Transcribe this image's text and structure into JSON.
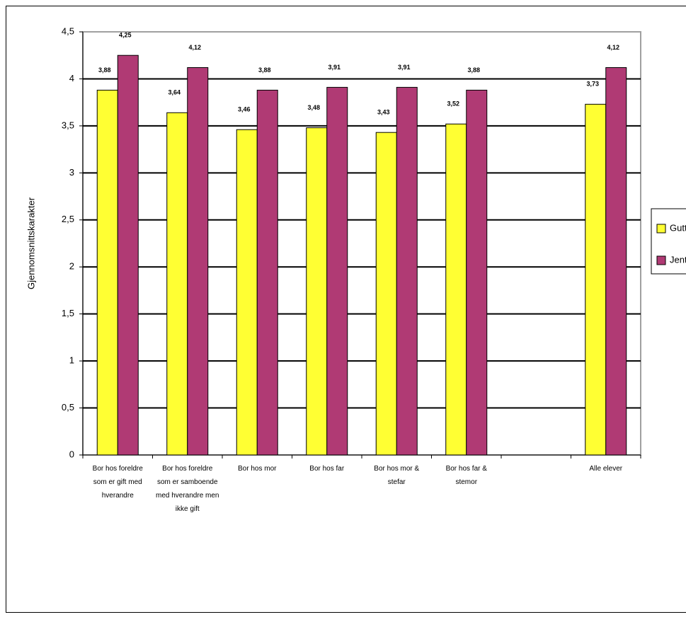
{
  "chart_data": {
    "type": "bar",
    "y_label": "Gjennomsnittskarakter",
    "categories": [
      "Bor hos foreldre som er gift med hverandre",
      "Bor hos foreldre som er samboende med hverandre men ikke gift",
      "Bor hos mor",
      "Bor hos far",
      "Bor hos mor & stefar",
      "Bor hos far & stemor",
      null,
      "Alle elever"
    ],
    "series": [
      {
        "name": "Gutter",
        "color": "#ffff33",
        "values": [
          3.88,
          3.64,
          3.46,
          3.48,
          3.43,
          3.52,
          null,
          3.73
        ],
        "value_labels": [
          "3,88",
          "3,64",
          "3,46",
          "3,48",
          "3,43",
          "3,52",
          null,
          "3,73"
        ]
      },
      {
        "name": "Jenter",
        "color": "#b03a74",
        "values": [
          4.25,
          4.12,
          3.88,
          3.91,
          3.91,
          3.88,
          null,
          4.12
        ],
        "value_labels": [
          "4,25",
          "4,12",
          "3,88",
          "3,91",
          "3,91",
          "3,88",
          null,
          "4,12"
        ]
      }
    ],
    "ylim": [
      0,
      4.5
    ],
    "yticks": [
      0,
      {
        "value": 0.5,
        "label": "0,5"
      },
      1,
      {
        "value": 1.5,
        "label": "1,5"
      },
      2,
      {
        "value": 2.5,
        "label": "2,5"
      },
      3,
      {
        "value": 3.5,
        "label": "3,5"
      },
      4,
      {
        "value": 4.5,
        "label": "4,5"
      }
    ],
    "grid": true,
    "legend": "right"
  }
}
